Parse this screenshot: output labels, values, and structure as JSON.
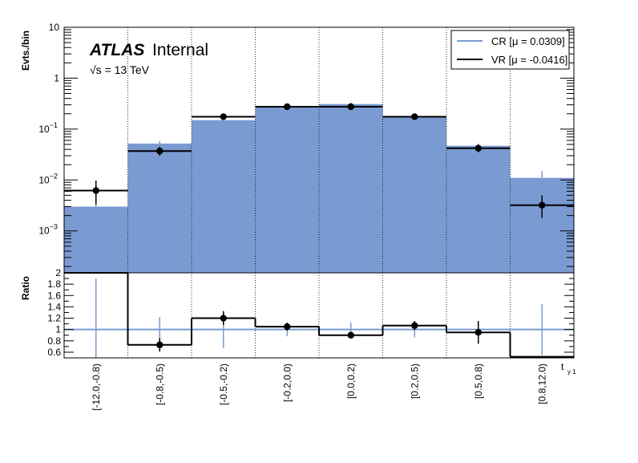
{
  "chart_data": [
    {
      "type": "bar",
      "yscale": "log",
      "ylabel": "Evts./bin",
      "ylim": [
        0.00015,
        10
      ],
      "ytick_labels": [
        {
          "value": 10,
          "base": "10",
          "exp": ""
        },
        {
          "value": 1,
          "base": "1",
          "exp": ""
        },
        {
          "value": 0.1,
          "base": "10",
          "exp": "−1"
        },
        {
          "value": 0.01,
          "base": "10",
          "exp": "−2"
        },
        {
          "value": 0.001,
          "base": "10",
          "exp": "−3"
        }
      ],
      "annotations": {
        "experiment": "ATLAS",
        "status": "Internal",
        "energy": "√s = 13 TeV"
      },
      "legend_position": "top-right",
      "categories": [
        "[-12.0,-0.8)",
        "[-0.8,-0.5)",
        "[-0.5,-0.2)",
        "[-0.2,0.0)",
        "[0.0,0.2)",
        "[0.2,0.5)",
        "[0.5,0.8)",
        "[0.8,12.0)"
      ],
      "series": [
        {
          "name": "CR [μ = 0.0309]",
          "style": "filled",
          "color": "#7a9bd2",
          "values": [
            0.003,
            0.052,
            0.15,
            0.28,
            0.31,
            0.18,
            0.047,
            0.011
          ]
        },
        {
          "name": "VR [μ = -0.0416]",
          "style": "step-points",
          "color": "#000000",
          "values": [
            0.0062,
            0.037,
            0.175,
            0.275,
            0.275,
            0.175,
            0.042,
            0.0032
          ],
          "err_low": [
            0.0029,
            0.007,
            0.02,
            0.03,
            0.03,
            0.02,
            0.007,
            0.0014
          ],
          "err_high": [
            0.0035,
            0.008,
            0.02,
            0.03,
            0.03,
            0.02,
            0.008,
            0.0018
          ]
        }
      ],
      "cr_errors": {
        "low": [
          0.0011,
          0.006,
          0.015,
          0.02,
          0.02,
          0.015,
          0.005,
          0.003
        ],
        "high": [
          0.0013,
          0.006,
          0.015,
          0.02,
          0.02,
          0.015,
          0.005,
          0.004
        ]
      }
    },
    {
      "type": "scatter",
      "ylabel": "Ratio",
      "xlabel": "t",
      "xlabel_sub": "γ 1",
      "ylim": [
        0.5,
        2.0
      ],
      "yticks": [
        0.6,
        0.8,
        1,
        1.2,
        1.4,
        1.6,
        1.8,
        2
      ],
      "ytick_labels": [
        "0.6",
        "0.8",
        "1",
        "1.2",
        "1.4",
        "1.6",
        "1.8",
        "2"
      ],
      "reference_line": 1,
      "categories": [
        "[-12.0,-0.8)",
        "[-0.8,-0.5)",
        "[-0.5,-0.2)",
        "[-0.2,0.0)",
        "[0.0,0.2)",
        "[0.2,0.5)",
        "[0.5,0.8)",
        "[0.8,12.0)"
      ],
      "ratio_values": [
        2.0,
        0.73,
        1.2,
        1.05,
        0.9,
        1.07,
        0.95,
        0.52
      ],
      "ratio_points": [
        null,
        0.73,
        1.2,
        1.05,
        0.9,
        1.07,
        0.95,
        null
      ],
      "ratio_err": [
        0,
        0.12,
        0.12,
        0.07,
        0.05,
        0.08,
        0.2,
        0
      ],
      "reference_err": [
        0.9,
        0.22,
        0.33,
        0.12,
        0.12,
        0.14,
        0.15,
        0.45
      ]
    }
  ]
}
